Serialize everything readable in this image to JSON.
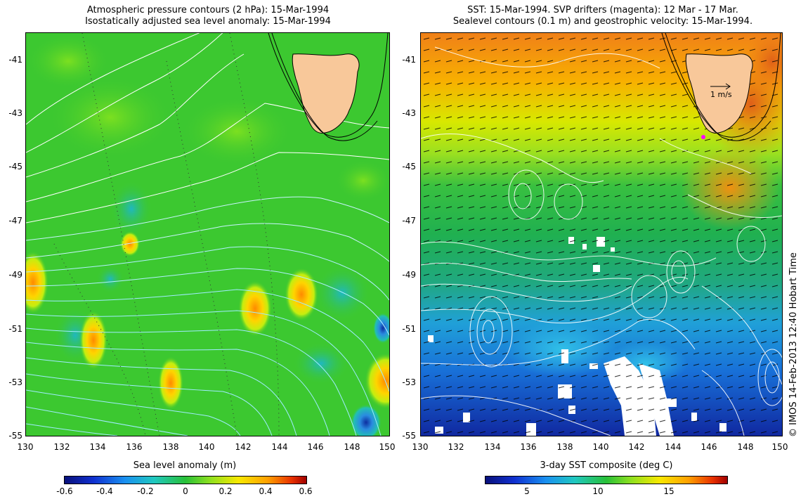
{
  "left_panel": {
    "title_line1": "Atmospheric pressure contours (2 hPa): 15-Mar-1994",
    "title_line2": "Isostatically adjusted sea level anomaly: 15-Mar-1994",
    "lat_labels": [
      "-41",
      "-43",
      "-45",
      "-47",
      "-49",
      "-51",
      "-53",
      "-55"
    ],
    "lon_labels": [
      "130",
      "132",
      "134",
      "136",
      "138",
      "140",
      "142",
      "144",
      "146",
      "148",
      "150"
    ],
    "colorbar": {
      "title": "Sea level anomaly (m)",
      "ticks": [
        "-0.6",
        "-0.4",
        "-0.2",
        "0",
        "0.2",
        "0.4",
        "0.6"
      ],
      "range": [
        -0.6,
        0.6
      ]
    }
  },
  "right_panel": {
    "title_line1": "SST: 15-Mar-1994. SVP drifters (magenta): 12 Mar - 17 Mar.",
    "title_line2": "Sealevel contours (0.1 m) and geostrophic velocity: 15-Mar-1994.",
    "lat_labels": [
      "-41",
      "-43",
      "-45",
      "-47",
      "-49",
      "-51",
      "-53",
      "-55"
    ],
    "lon_labels": [
      "130",
      "132",
      "134",
      "136",
      "138",
      "140",
      "142",
      "144",
      "146",
      "148",
      "150"
    ],
    "scale_label": "1 m/s",
    "colorbar": {
      "title": "3-day SST composite (deg C)",
      "ticks": [
        "5",
        "10",
        "15"
      ],
      "range": [
        2,
        19
      ]
    }
  },
  "credit": "© IMOS 14-Feb-2013 12:40 Hobart Time",
  "colors": {
    "land": "#f8c89a",
    "anomaly_base": "#3cc830",
    "contour": "#ffffff",
    "drifter": "#ff00ff"
  }
}
